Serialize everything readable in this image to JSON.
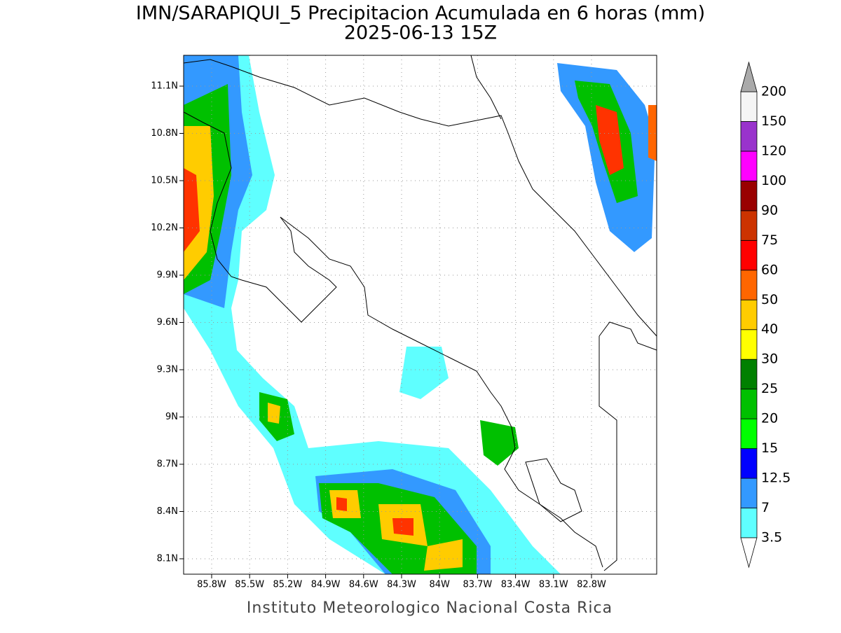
{
  "title": "IMN/SARAPIQUI_5 Precipitacion Acumulada en 6 horas (mm)",
  "subtitle": "2025-06-13 15Z",
  "lat_labels": [
    "11.1N",
    "10.8N",
    "10.5N",
    "10.2N",
    "9.9N",
    "9.6N",
    "9.3N",
    "9N",
    "8.7N",
    "8.4N",
    "8.1N"
  ],
  "lon_labels": [
    "85.8W",
    "85.5W",
    "85.2W",
    "84.9W",
    "84.6W",
    "84.3W",
    "84W",
    "83.7W",
    "83.4W",
    "83.1W",
    "82.8W"
  ],
  "colorbar": {
    "levels": [
      {
        "label": "3.5",
        "color": "#5fffff"
      },
      {
        "label": "7",
        "color": "#3399ff"
      },
      {
        "label": "12.5",
        "color": "#0000ff"
      },
      {
        "label": "15",
        "color": "#00ff00"
      },
      {
        "label": "20",
        "color": "#00c000"
      },
      {
        "label": "25",
        "color": "#008000"
      },
      {
        "label": "30",
        "color": "#ffff00"
      },
      {
        "label": "40",
        "color": "#ffcc00"
      },
      {
        "label": "50",
        "color": "#ff6600"
      },
      {
        "label": "60",
        "color": "#ff0000"
      },
      {
        "label": "75",
        "color": "#cc3300"
      },
      {
        "label": "90",
        "color": "#990000"
      },
      {
        "label": "100",
        "color": "#ff00ff"
      },
      {
        "label": "120",
        "color": "#9933cc"
      },
      {
        "label": "150",
        "color": "#f5f5f5"
      },
      {
        "label": "200",
        "color": "#aaaaaa"
      }
    ]
  },
  "footer": "Instituto Meteorologico Nacional Costa Rica"
}
